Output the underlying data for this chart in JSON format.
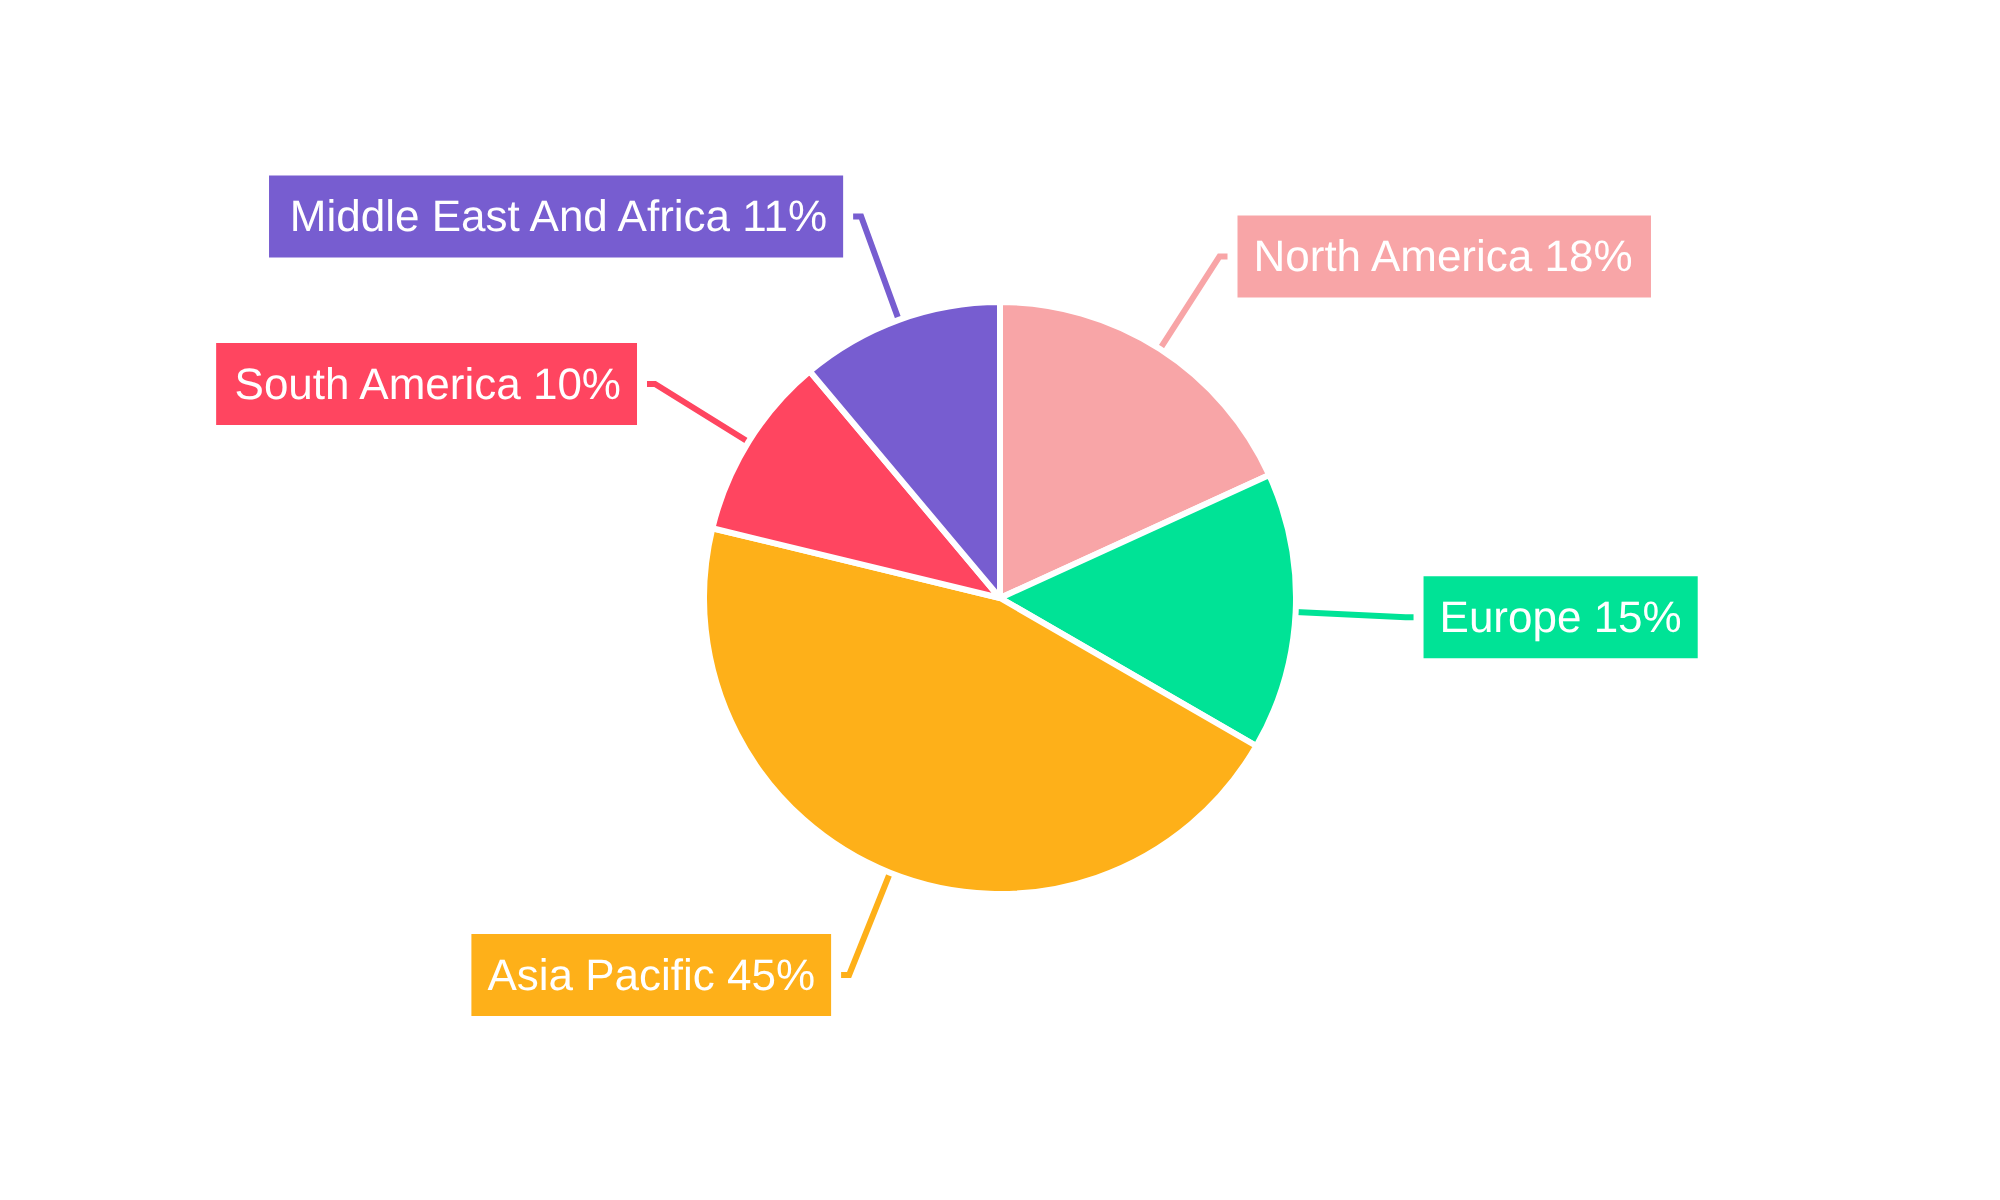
{
  "chart_data": {
    "type": "pie",
    "categories": [
      "North America",
      "Europe",
      "Asia Pacific",
      "South America",
      "Middle East And Africa"
    ],
    "values": [
      18,
      15,
      45,
      10,
      11
    ],
    "value_labels": [
      "18%",
      "15%",
      "45%",
      "10%",
      "11%"
    ],
    "colors": [
      "#f8a5a7",
      "#00e396",
      "#feb019",
      "#ff4560",
      "#775dd0"
    ],
    "legend": false
  }
}
